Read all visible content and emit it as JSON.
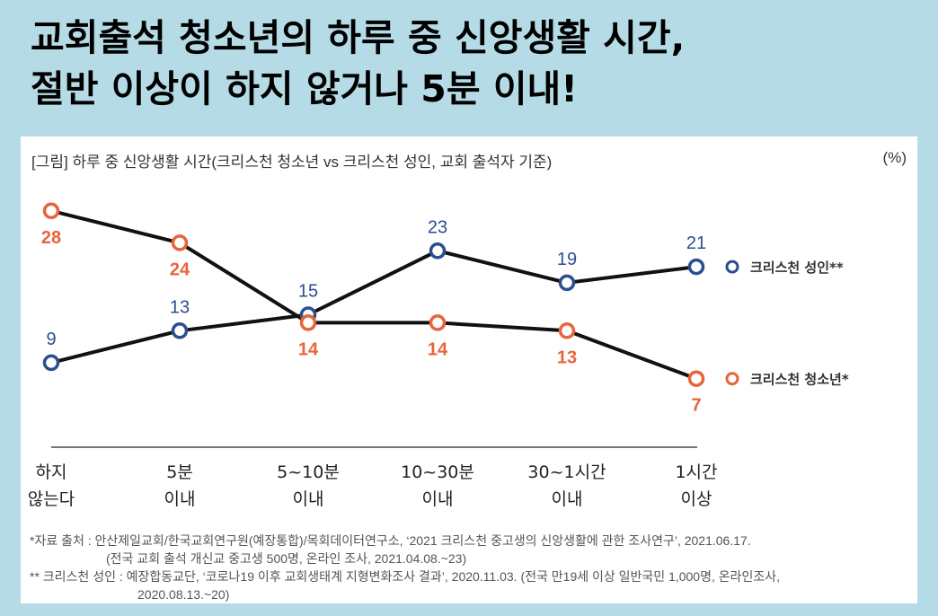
{
  "headline": {
    "line1": "교회출석 청소년의 하루 중 신앙생활 시간,",
    "line2": "절반 이상이 하지 않거나 5분 이내!"
  },
  "figure": {
    "title": "[그림] 하루 중 신앙생활 시간(크리스천 청소년 vs 크리스천 성인, 교회 출석자 기준)",
    "unit": "(%)"
  },
  "chart_data": {
    "type": "line",
    "categories": [
      [
        "하지",
        "않는다"
      ],
      [
        "5분",
        "이내"
      ],
      [
        "5~10분",
        "이내"
      ],
      [
        "10~30분",
        "이내"
      ],
      [
        "30~1시간",
        "이내"
      ],
      [
        "1시간",
        "이상"
      ]
    ],
    "series": [
      {
        "name": "크리스천 성인**",
        "values": [
          9,
          13,
          15,
          23,
          19,
          21
        ],
        "color": "#2b4f8e",
        "label_color": "#2b4f8e",
        "label_pos": "above"
      },
      {
        "name": "크리스천 청소년*",
        "values": [
          28,
          24,
          14,
          14,
          13,
          7
        ],
        "color": "#e8643a",
        "label_color": "#e8643a",
        "label_pos": "below"
      }
    ],
    "legend_position": "right",
    "grid": false
  },
  "notes": {
    "line1": "*자료 출처 : 안산제일교회/한국교회연구원(예장통합)/목회데이터연구소, ‘2021 크리스천 중고생의 신앙생활에 관한 조사연구’, 2021.06.17.",
    "line2": "(전국 교회 출석 개신교 중고생 500명, 온라인 조사, 2021.04.08.~23)",
    "line3": "** 크리스천 성인 : 예장합동교단, ‘코로나19 이후 교회생태계 지형변화조사 결과’, 2020.11.03. (전국 만19세 이상 일반국민 1,000명, 온라인조사,",
    "line4": "2020.08.13.~20)"
  }
}
